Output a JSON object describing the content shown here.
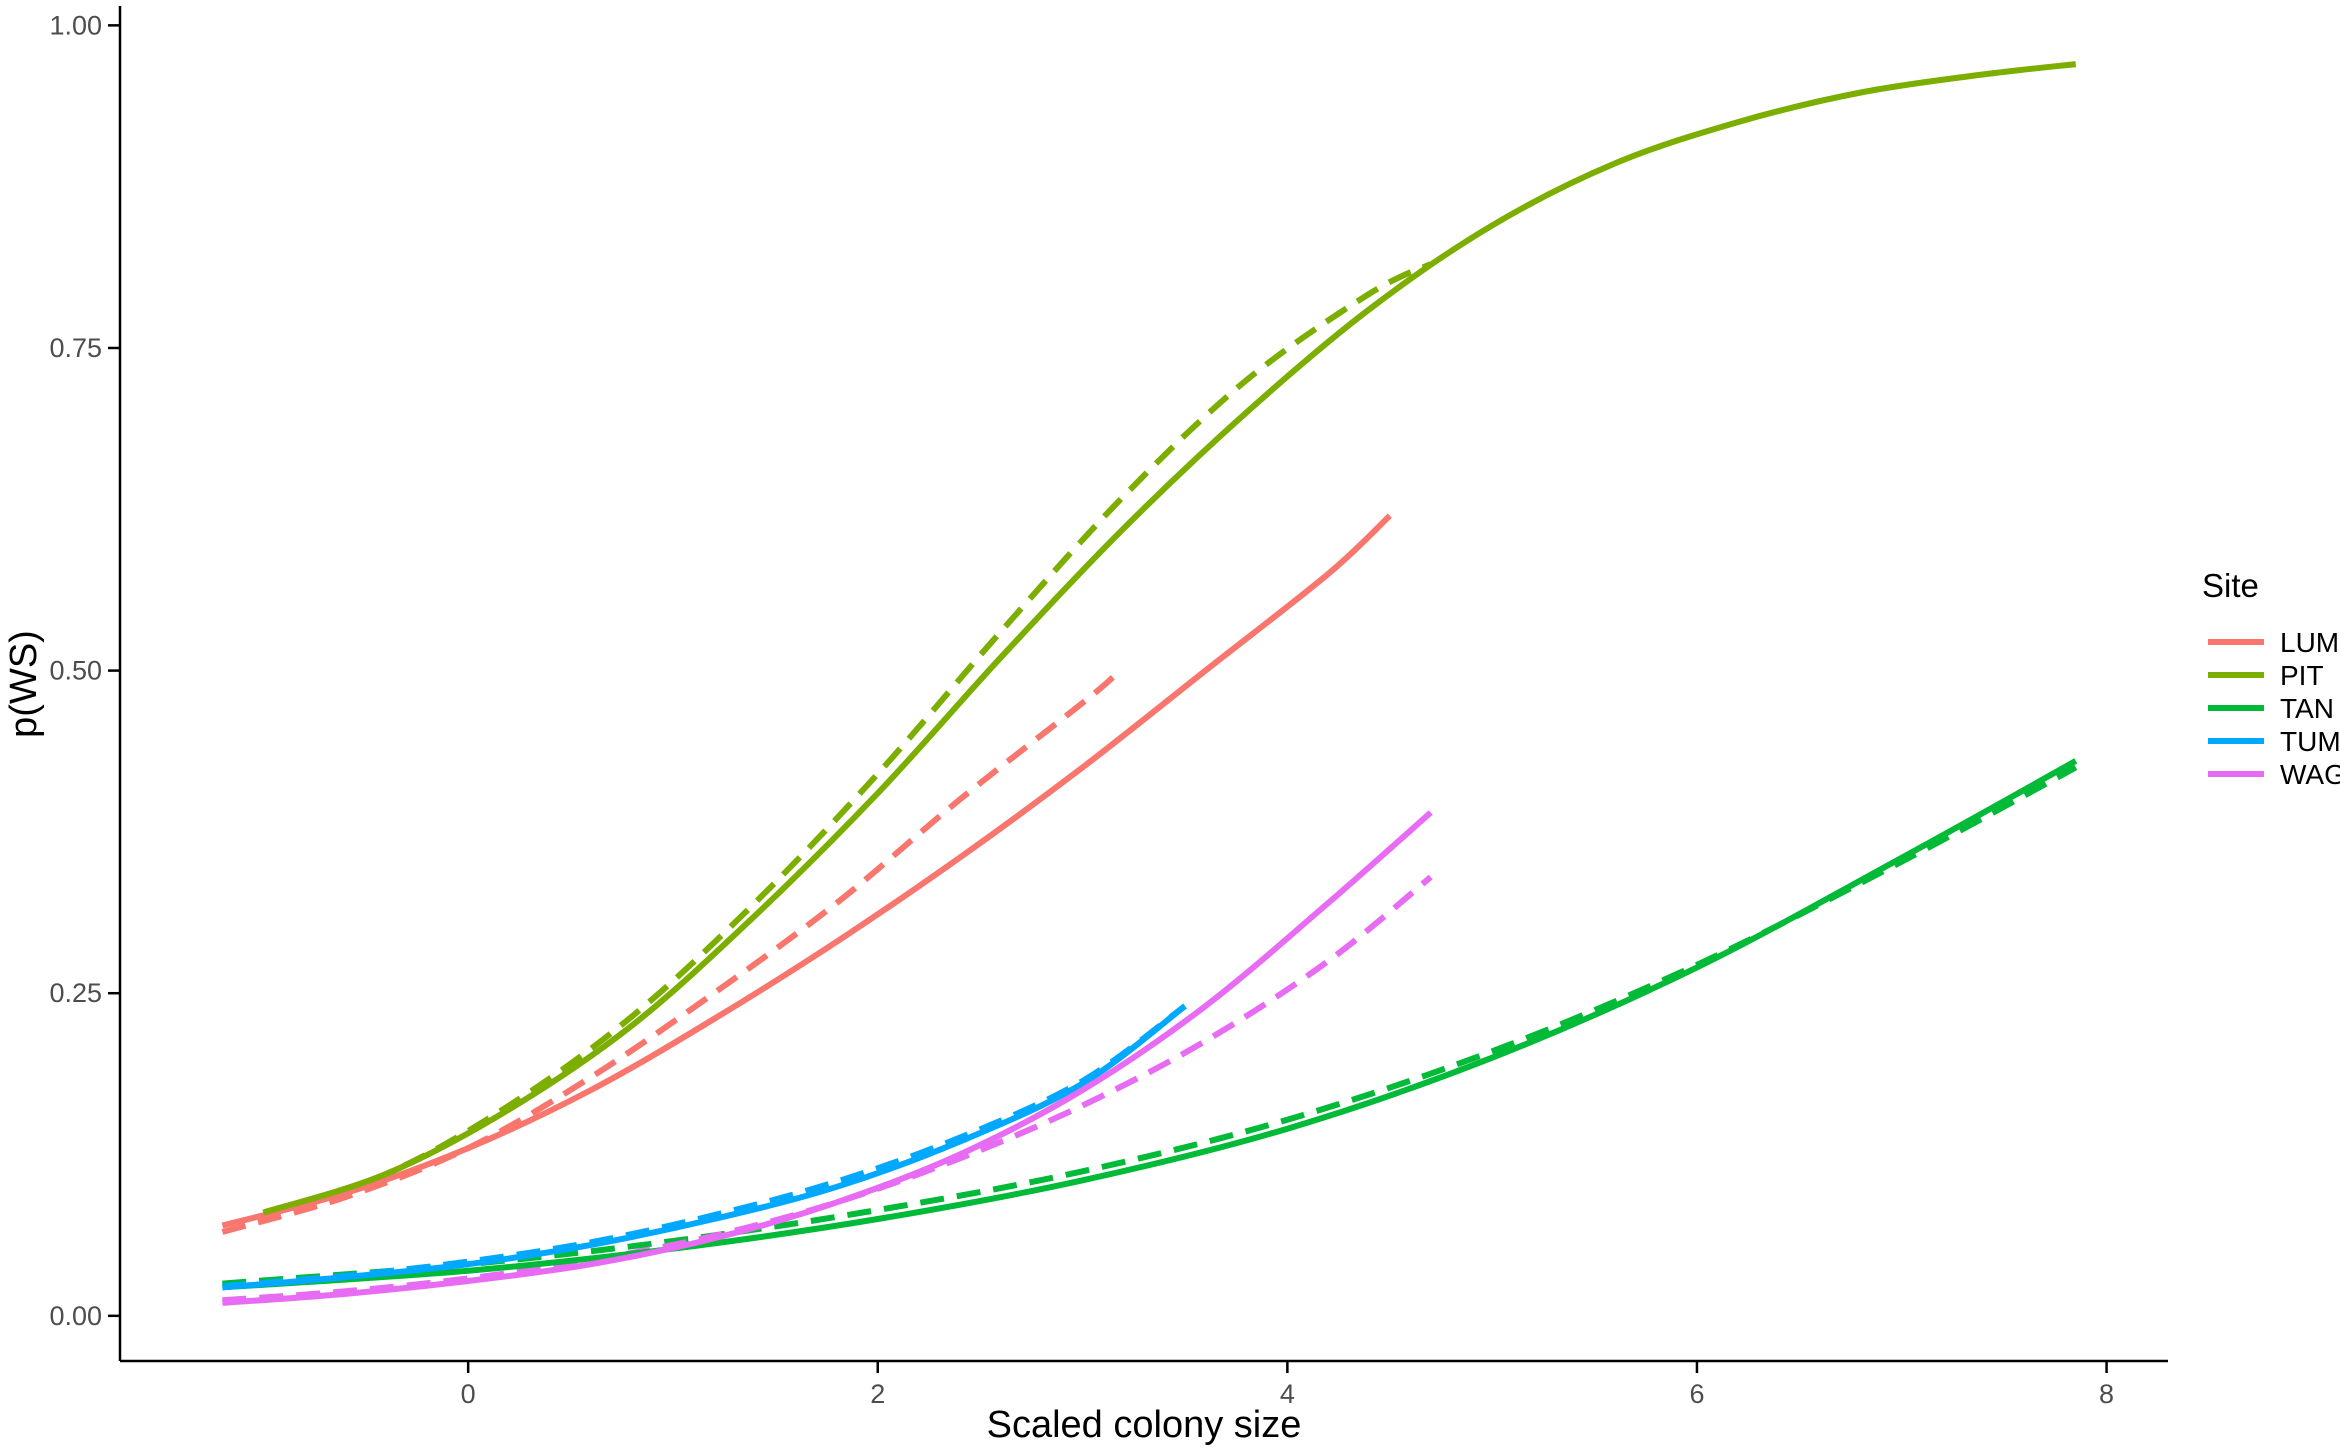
{
  "chart_data": {
    "type": "line",
    "xlabel": "Scaled colony size",
    "ylabel": "p(WS)",
    "xlim": [
      -1.7,
      8.3
    ],
    "ylim": [
      -0.035,
      1.015
    ],
    "xticks": [
      0,
      2,
      4,
      6,
      8
    ],
    "xtick_labels": [
      "0",
      "2",
      "4",
      "6",
      "8"
    ],
    "yticks": [
      0,
      0.25,
      0.5,
      0.75,
      1.0
    ],
    "ytick_labels": [
      "0.00",
      "0.25",
      "0.50",
      "0.75",
      "1.00"
    ],
    "grid": false,
    "legend": {
      "title": "Site",
      "position": "right",
      "entries": [
        "LUM",
        "PIT",
        "TAN",
        "TUM",
        "WAG"
      ]
    },
    "line_styles": {
      "solid": "fitted",
      "dashed": "fitted-alt"
    },
    "series": [
      {
        "name": "LUM",
        "color": "#F8766D",
        "style": "solid",
        "x": [
          -1.2,
          -0.6,
          0,
          0.6,
          1.2,
          1.8,
          2.4,
          3.0,
          3.6,
          4.2,
          4.5
        ],
        "y": [
          0.07,
          0.095,
          0.13,
          0.175,
          0.23,
          0.29,
          0.355,
          0.425,
          0.5,
          0.575,
          0.62
        ]
      },
      {
        "name": "LUM",
        "color": "#F8766D",
        "style": "dashed",
        "x": [
          -1.2,
          -0.6,
          0,
          0.6,
          1.2,
          1.8,
          2.4,
          3.0,
          3.15
        ],
        "y": [
          0.065,
          0.092,
          0.13,
          0.185,
          0.25,
          0.32,
          0.4,
          0.475,
          0.495
        ]
      },
      {
        "name": "PIT",
        "color": "#7CAE00",
        "style": "solid",
        "x": [
          -1.0,
          -0.4,
          0.2,
          0.8,
          1.4,
          2.0,
          2.6,
          3.2,
          3.8,
          4.4,
          5.0,
          5.6,
          6.2,
          6.8,
          7.4,
          7.85
        ],
        "y": [
          0.08,
          0.11,
          0.16,
          0.225,
          0.31,
          0.405,
          0.51,
          0.61,
          0.7,
          0.78,
          0.845,
          0.893,
          0.925,
          0.948,
          0.962,
          0.97
        ]
      },
      {
        "name": "PIT",
        "color": "#7CAE00",
        "style": "dashed",
        "x": [
          -1.0,
          -0.4,
          0.2,
          0.8,
          1.4,
          2.0,
          2.6,
          3.2,
          3.8,
          4.4,
          4.7
        ],
        "y": [
          0.08,
          0.11,
          0.163,
          0.232,
          0.32,
          0.42,
          0.53,
          0.635,
          0.725,
          0.792,
          0.815
        ]
      },
      {
        "name": "TAN",
        "color": "#00BA38",
        "style": "solid",
        "x": [
          -1.2,
          0,
          1.0,
          2.0,
          3.0,
          4.0,
          5.0,
          6.0,
          7.0,
          7.85
        ],
        "y": [
          0.022,
          0.035,
          0.052,
          0.075,
          0.105,
          0.145,
          0.2,
          0.27,
          0.355,
          0.43
        ]
      },
      {
        "name": "TAN",
        "color": "#00BA38",
        "style": "dashed",
        "x": [
          -1.2,
          0,
          1.0,
          2.0,
          3.0,
          4.0,
          5.0,
          6.0,
          7.0,
          7.85
        ],
        "y": [
          0.025,
          0.04,
          0.058,
          0.082,
          0.112,
          0.152,
          0.205,
          0.272,
          0.352,
          0.425
        ]
      },
      {
        "name": "TUM",
        "color": "#00A9FF",
        "style": "solid",
        "x": [
          -1.2,
          -0.6,
          0,
          0.6,
          1.2,
          1.8,
          2.4,
          3.0,
          3.5
        ],
        "y": [
          0.022,
          0.03,
          0.04,
          0.055,
          0.075,
          0.1,
          0.135,
          0.18,
          0.24
        ]
      },
      {
        "name": "TUM",
        "color": "#00A9FF",
        "style": "dashed",
        "x": [
          -1.2,
          -0.6,
          0,
          0.6,
          1.2,
          1.8,
          2.4,
          3.0,
          3.5
        ],
        "y": [
          0.023,
          0.031,
          0.042,
          0.057,
          0.078,
          0.104,
          0.138,
          0.182,
          0.24
        ]
      },
      {
        "name": "WAG",
        "color": "#E76BF3",
        "style": "solid",
        "x": [
          -1.2,
          -0.6,
          0,
          0.6,
          1.2,
          1.8,
          2.4,
          3.0,
          3.6,
          4.2,
          4.7
        ],
        "y": [
          0.01,
          0.017,
          0.027,
          0.04,
          0.06,
          0.088,
          0.125,
          0.175,
          0.24,
          0.32,
          0.39
        ]
      },
      {
        "name": "WAG",
        "color": "#E76BF3",
        "style": "dashed",
        "x": [
          -1.2,
          -0.6,
          0,
          0.6,
          1.2,
          1.8,
          2.4,
          3.0,
          3.6,
          4.2,
          4.7
        ],
        "y": [
          0.012,
          0.019,
          0.029,
          0.043,
          0.062,
          0.088,
          0.122,
          0.163,
          0.213,
          0.275,
          0.34
        ]
      }
    ]
  }
}
